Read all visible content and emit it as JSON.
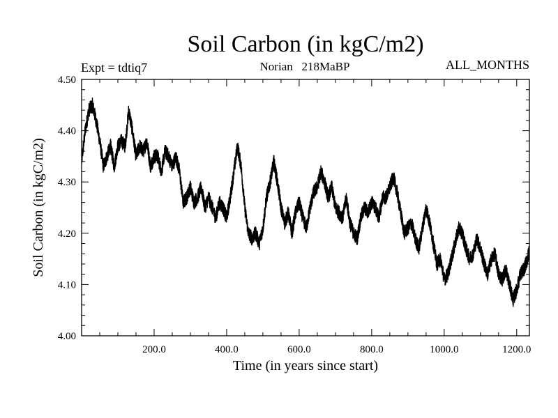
{
  "chart_data": {
    "type": "line",
    "title": "Soil Carbon (in kgC/m2)",
    "subtitle_left": "Expt = tdtiq7",
    "subtitle_center": "Norian   218MaBP",
    "subtitle_right": "ALL_MONTHS",
    "xlabel": "Time (in years since start)",
    "ylabel": "Soil Carbon (in kgC/m2)",
    "xlim": [
      0,
      1235
    ],
    "ylim": [
      4.0,
      4.5
    ],
    "x_ticks": [
      200,
      400,
      600,
      800,
      1000,
      1200
    ],
    "x_tick_labels": [
      "200.0",
      "400.0",
      "600.0",
      "800.0",
      "1000.0",
      "1200.0"
    ],
    "y_ticks": [
      4.0,
      4.1,
      4.2,
      4.3,
      4.4,
      4.5
    ],
    "y_tick_labels": [
      "4.00",
      "4.10",
      "4.20",
      "4.30",
      "4.40",
      "4.50"
    ],
    "line_color": "#000000",
    "series": [
      {
        "name": "Soil Carbon",
        "points": [
          [
            0,
            4.34
          ],
          [
            10,
            4.4
          ],
          [
            20,
            4.44
          ],
          [
            30,
            4.45
          ],
          [
            40,
            4.42
          ],
          [
            50,
            4.38
          ],
          [
            60,
            4.33
          ],
          [
            70,
            4.35
          ],
          [
            80,
            4.37
          ],
          [
            90,
            4.33
          ],
          [
            100,
            4.37
          ],
          [
            110,
            4.38
          ],
          [
            120,
            4.37
          ],
          [
            130,
            4.44
          ],
          [
            140,
            4.4
          ],
          [
            150,
            4.35
          ],
          [
            160,
            4.37
          ],
          [
            170,
            4.36
          ],
          [
            180,
            4.38
          ],
          [
            190,
            4.33
          ],
          [
            200,
            4.35
          ],
          [
            210,
            4.35
          ],
          [
            220,
            4.32
          ],
          [
            230,
            4.36
          ],
          [
            240,
            4.35
          ],
          [
            250,
            4.33
          ],
          [
            260,
            4.35
          ],
          [
            270,
            4.32
          ],
          [
            280,
            4.26
          ],
          [
            290,
            4.27
          ],
          [
            300,
            4.29
          ],
          [
            310,
            4.26
          ],
          [
            320,
            4.27
          ],
          [
            330,
            4.29
          ],
          [
            340,
            4.25
          ],
          [
            350,
            4.27
          ],
          [
            360,
            4.25
          ],
          [
            370,
            4.23
          ],
          [
            380,
            4.26
          ],
          [
            390,
            4.25
          ],
          [
            400,
            4.23
          ],
          [
            410,
            4.27
          ],
          [
            420,
            4.32
          ],
          [
            430,
            4.37
          ],
          [
            440,
            4.33
          ],
          [
            450,
            4.25
          ],
          [
            460,
            4.2
          ],
          [
            470,
            4.19
          ],
          [
            480,
            4.2
          ],
          [
            490,
            4.18
          ],
          [
            500,
            4.21
          ],
          [
            510,
            4.27
          ],
          [
            520,
            4.3
          ],
          [
            530,
            4.34
          ],
          [
            540,
            4.3
          ],
          [
            550,
            4.25
          ],
          [
            560,
            4.22
          ],
          [
            570,
            4.24
          ],
          [
            580,
            4.2
          ],
          [
            590,
            4.24
          ],
          [
            600,
            4.26
          ],
          [
            610,
            4.23
          ],
          [
            620,
            4.21
          ],
          [
            630,
            4.25
          ],
          [
            640,
            4.28
          ],
          [
            650,
            4.29
          ],
          [
            660,
            4.32
          ],
          [
            670,
            4.3
          ],
          [
            680,
            4.27
          ],
          [
            690,
            4.29
          ],
          [
            700,
            4.25
          ],
          [
            710,
            4.24
          ],
          [
            720,
            4.23
          ],
          [
            730,
            4.27
          ],
          [
            740,
            4.22
          ],
          [
            750,
            4.2
          ],
          [
            760,
            4.19
          ],
          [
            770,
            4.23
          ],
          [
            780,
            4.25
          ],
          [
            790,
            4.24
          ],
          [
            800,
            4.26
          ],
          [
            810,
            4.25
          ],
          [
            820,
            4.23
          ],
          [
            830,
            4.27
          ],
          [
            840,
            4.27
          ],
          [
            850,
            4.29
          ],
          [
            860,
            4.31
          ],
          [
            870,
            4.28
          ],
          [
            880,
            4.24
          ],
          [
            890,
            4.2
          ],
          [
            900,
            4.21
          ],
          [
            910,
            4.22
          ],
          [
            920,
            4.19
          ],
          [
            930,
            4.17
          ],
          [
            940,
            4.21
          ],
          [
            950,
            4.25
          ],
          [
            960,
            4.22
          ],
          [
            970,
            4.18
          ],
          [
            980,
            4.14
          ],
          [
            990,
            4.15
          ],
          [
            1000,
            4.11
          ],
          [
            1010,
            4.12
          ],
          [
            1020,
            4.15
          ],
          [
            1030,
            4.18
          ],
          [
            1040,
            4.21
          ],
          [
            1050,
            4.2
          ],
          [
            1060,
            4.17
          ],
          [
            1070,
            4.15
          ],
          [
            1080,
            4.16
          ],
          [
            1090,
            4.19
          ],
          [
            1100,
            4.17
          ],
          [
            1110,
            4.14
          ],
          [
            1120,
            4.12
          ],
          [
            1130,
            4.15
          ],
          [
            1140,
            4.16
          ],
          [
            1150,
            4.12
          ],
          [
            1160,
            4.11
          ],
          [
            1170,
            4.13
          ],
          [
            1180,
            4.1
          ],
          [
            1190,
            4.07
          ],
          [
            1200,
            4.09
          ],
          [
            1210,
            4.12
          ],
          [
            1220,
            4.13
          ],
          [
            1230,
            4.15
          ],
          [
            1235,
            4.17
          ]
        ]
      }
    ]
  }
}
